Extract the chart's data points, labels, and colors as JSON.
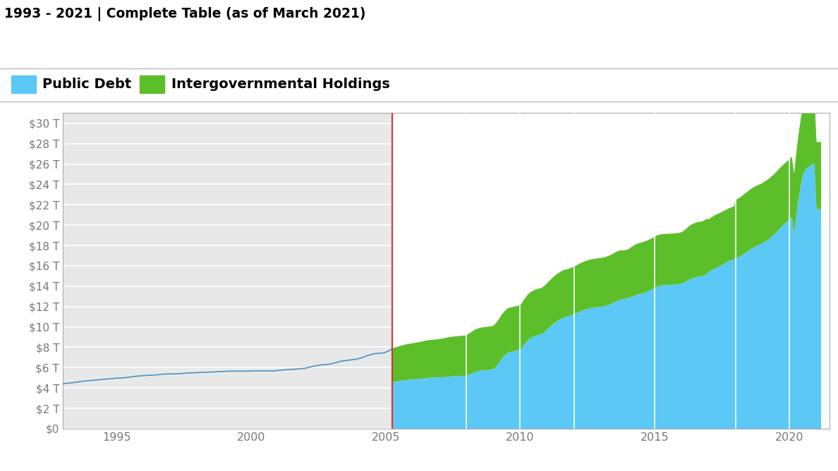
{
  "title": "1993 - 2021 | Complete Table (as of March 2021)",
  "public_debt_color": "#5BC8F5",
  "intergovernmental_color": "#5CBF2A",
  "line_color": "#4A90C4",
  "bg_color_left": "#E8E8E8",
  "bg_color_right": "#FFFFFF",
  "grid_color": "#FFFFFF",
  "ylim": [
    0,
    31
  ],
  "yticks": [
    0,
    2,
    4,
    6,
    8,
    10,
    12,
    14,
    16,
    18,
    20,
    22,
    24,
    26,
    28,
    30
  ],
  "ytick_labels": [
    "$0",
    "$2 T",
    "$4 T",
    "$6 T",
    "$8 T",
    "$10 T",
    "$12 T",
    "$14 T",
    "$16 T",
    "$18 T",
    "$20 T",
    "$22 T",
    "$24 T",
    "$26 T",
    "$28 T",
    "$30 T"
  ],
  "xticks": [
    1995,
    2000,
    2005,
    2010,
    2015,
    2020
  ],
  "xlim_left": 1993.0,
  "xlim_right": 2021.5,
  "split_year": 2005.25,
  "legend_public": "Public Debt",
  "legend_intergovernmental": "Intergovernmental Holdings",
  "years_before": [
    1993.0,
    1993.08,
    1993.17,
    1993.25,
    1993.33,
    1993.42,
    1993.5,
    1993.58,
    1993.67,
    1993.75,
    1993.83,
    1993.92,
    1994.0,
    1994.08,
    1994.17,
    1994.25,
    1994.33,
    1994.42,
    1994.5,
    1994.58,
    1994.67,
    1994.75,
    1994.83,
    1994.92,
    1995.0,
    1995.08,
    1995.17,
    1995.25,
    1995.33,
    1995.42,
    1995.5,
    1995.58,
    1995.67,
    1995.75,
    1995.83,
    1995.92,
    1996.0,
    1996.08,
    1996.17,
    1996.25,
    1996.33,
    1996.42,
    1996.5,
    1996.58,
    1996.67,
    1996.75,
    1996.83,
    1996.92,
    1997.0,
    1997.08,
    1997.17,
    1997.25,
    1997.33,
    1997.42,
    1997.5,
    1997.58,
    1997.67,
    1997.75,
    1997.83,
    1997.92,
    1998.0,
    1998.08,
    1998.17,
    1998.25,
    1998.33,
    1998.42,
    1998.5,
    1998.58,
    1998.67,
    1998.75,
    1998.83,
    1998.92,
    1999.0,
    1999.08,
    1999.17,
    1999.25,
    1999.33,
    1999.42,
    1999.5,
    1999.58,
    1999.67,
    1999.75,
    1999.83,
    1999.92,
    2000.0,
    2000.08,
    2000.17,
    2000.25,
    2000.33,
    2000.42,
    2000.5,
    2000.58,
    2000.67,
    2000.75,
    2000.83,
    2000.92,
    2001.0,
    2001.08,
    2001.17,
    2001.25,
    2001.33,
    2001.42,
    2001.5,
    2001.58,
    2001.67,
    2001.75,
    2001.83,
    2001.92,
    2002.0,
    2002.08,
    2002.17,
    2002.25,
    2002.33,
    2002.42,
    2002.5,
    2002.58,
    2002.67,
    2002.75,
    2002.83,
    2002.92,
    2003.0,
    2003.08,
    2003.17,
    2003.25,
    2003.33,
    2003.42,
    2003.5,
    2003.58,
    2003.67,
    2003.75,
    2003.83,
    2003.92,
    2004.0,
    2004.08,
    2004.17,
    2004.25,
    2004.33,
    2004.42,
    2004.5,
    2004.58,
    2004.67,
    2004.75,
    2004.83,
    2004.92,
    2005.0,
    2005.08,
    2005.17,
    2005.25
  ],
  "total_before": [
    4.41,
    4.43,
    4.45,
    4.47,
    4.5,
    4.53,
    4.56,
    4.59,
    4.62,
    4.65,
    4.68,
    4.7,
    4.72,
    4.74,
    4.76,
    4.78,
    4.8,
    4.82,
    4.84,
    4.86,
    4.88,
    4.9,
    4.92,
    4.94,
    4.96,
    4.97,
    4.98,
    4.99,
    5.01,
    5.04,
    5.07,
    5.1,
    5.13,
    5.15,
    5.17,
    5.19,
    5.21,
    5.22,
    5.23,
    5.24,
    5.25,
    5.27,
    5.29,
    5.31,
    5.33,
    5.35,
    5.36,
    5.37,
    5.38,
    5.38,
    5.38,
    5.39,
    5.4,
    5.42,
    5.44,
    5.45,
    5.46,
    5.47,
    5.48,
    5.49,
    5.5,
    5.51,
    5.52,
    5.53,
    5.54,
    5.55,
    5.56,
    5.57,
    5.58,
    5.59,
    5.6,
    5.61,
    5.62,
    5.63,
    5.64,
    5.65,
    5.65,
    5.65,
    5.65,
    5.65,
    5.65,
    5.65,
    5.65,
    5.65,
    5.67,
    5.67,
    5.67,
    5.67,
    5.67,
    5.67,
    5.67,
    5.67,
    5.67,
    5.67,
    5.67,
    5.67,
    5.72,
    5.73,
    5.76,
    5.78,
    5.79,
    5.8,
    5.81,
    5.82,
    5.84,
    5.86,
    5.88,
    5.9,
    5.93,
    5.98,
    6.03,
    6.09,
    6.14,
    6.18,
    6.22,
    6.25,
    6.27,
    6.29,
    6.31,
    6.33,
    6.38,
    6.44,
    6.51,
    6.57,
    6.62,
    6.65,
    6.68,
    6.71,
    6.74,
    6.77,
    6.8,
    6.83,
    6.88,
    6.94,
    7.02,
    7.09,
    7.18,
    7.24,
    7.3,
    7.36,
    7.38,
    7.4,
    7.42,
    7.44,
    7.5,
    7.59,
    7.72,
    7.84
  ],
  "years_after": [
    2005.25,
    2005.33,
    2005.42,
    2005.5,
    2005.58,
    2005.67,
    2005.75,
    2005.83,
    2005.92,
    2006.0,
    2006.08,
    2006.17,
    2006.25,
    2006.33,
    2006.42,
    2006.5,
    2006.58,
    2006.67,
    2006.75,
    2006.83,
    2006.92,
    2007.0,
    2007.08,
    2007.17,
    2007.25,
    2007.33,
    2007.42,
    2007.5,
    2007.58,
    2007.67,
    2007.75,
    2007.83,
    2007.92,
    2008.0,
    2008.08,
    2008.17,
    2008.25,
    2008.33,
    2008.42,
    2008.5,
    2008.58,
    2008.67,
    2008.75,
    2008.83,
    2008.92,
    2009.0,
    2009.08,
    2009.17,
    2009.25,
    2009.33,
    2009.42,
    2009.5,
    2009.58,
    2009.67,
    2009.75,
    2009.83,
    2009.92,
    2010.0,
    2010.08,
    2010.17,
    2010.25,
    2010.33,
    2010.42,
    2010.5,
    2010.58,
    2010.67,
    2010.75,
    2010.83,
    2010.92,
    2011.0,
    2011.08,
    2011.17,
    2011.25,
    2011.33,
    2011.42,
    2011.5,
    2011.58,
    2011.67,
    2011.75,
    2011.83,
    2011.92,
    2012.0,
    2012.08,
    2012.17,
    2012.25,
    2012.33,
    2012.42,
    2012.5,
    2012.58,
    2012.67,
    2012.75,
    2012.83,
    2012.92,
    2013.0,
    2013.08,
    2013.17,
    2013.25,
    2013.33,
    2013.42,
    2013.5,
    2013.58,
    2013.67,
    2013.75,
    2013.83,
    2013.92,
    2014.0,
    2014.08,
    2014.17,
    2014.25,
    2014.33,
    2014.42,
    2014.5,
    2014.58,
    2014.67,
    2014.75,
    2014.83,
    2014.92,
    2015.0,
    2015.08,
    2015.17,
    2015.25,
    2015.33,
    2015.42,
    2015.5,
    2015.58,
    2015.67,
    2015.75,
    2015.83,
    2015.92,
    2016.0,
    2016.08,
    2016.17,
    2016.25,
    2016.33,
    2016.42,
    2016.5,
    2016.58,
    2016.67,
    2016.75,
    2016.83,
    2016.92,
    2017.0,
    2017.08,
    2017.17,
    2017.25,
    2017.33,
    2017.42,
    2017.5,
    2017.58,
    2017.67,
    2017.75,
    2017.83,
    2017.92,
    2018.0,
    2018.08,
    2018.17,
    2018.25,
    2018.33,
    2018.42,
    2018.5,
    2018.58,
    2018.67,
    2018.75,
    2018.83,
    2018.92,
    2019.0,
    2019.08,
    2019.17,
    2019.25,
    2019.33,
    2019.42,
    2019.5,
    2019.58,
    2019.67,
    2019.75,
    2019.83,
    2019.92,
    2020.0,
    2020.08,
    2020.17,
    2020.25,
    2020.33,
    2020.42,
    2020.5,
    2020.58,
    2020.67,
    2020.75,
    2020.83,
    2020.92,
    2021.0,
    2021.17
  ],
  "public_after": [
    4.59,
    4.64,
    4.68,
    4.72,
    4.76,
    4.79,
    4.81,
    4.83,
    4.85,
    4.87,
    4.89,
    4.91,
    4.93,
    4.95,
    4.98,
    5.0,
    5.02,
    5.04,
    5.05,
    5.06,
    5.07,
    5.08,
    5.09,
    5.1,
    5.12,
    5.14,
    5.16,
    5.17,
    5.18,
    5.19,
    5.2,
    5.21,
    5.22,
    5.24,
    5.32,
    5.42,
    5.52,
    5.62,
    5.69,
    5.74,
    5.77,
    5.79,
    5.8,
    5.82,
    5.84,
    5.9,
    6.1,
    6.4,
    6.7,
    7.0,
    7.25,
    7.45,
    7.55,
    7.6,
    7.65,
    7.7,
    7.75,
    7.8,
    8.1,
    8.4,
    8.65,
    8.85,
    9.0,
    9.1,
    9.18,
    9.24,
    9.3,
    9.4,
    9.6,
    9.8,
    10.0,
    10.2,
    10.38,
    10.55,
    10.7,
    10.82,
    10.92,
    11.0,
    11.05,
    11.12,
    11.2,
    11.3,
    11.38,
    11.48,
    11.58,
    11.66,
    11.74,
    11.8,
    11.85,
    11.9,
    11.94,
    11.97,
    11.99,
    12.01,
    12.05,
    12.1,
    12.17,
    12.24,
    12.35,
    12.47,
    12.57,
    12.65,
    12.72,
    12.77,
    12.82,
    12.87,
    12.93,
    13.0,
    13.1,
    13.18,
    13.25,
    13.3,
    13.38,
    13.45,
    13.55,
    13.65,
    13.75,
    13.85,
    14.0,
    14.05,
    14.1,
    14.12,
    14.14,
    14.15,
    14.16,
    14.17,
    14.2,
    14.22,
    14.25,
    14.3,
    14.4,
    14.52,
    14.65,
    14.75,
    14.83,
    14.9,
    14.95,
    14.98,
    15.0,
    15.1,
    15.25,
    15.4,
    15.55,
    15.68,
    15.8,
    15.9,
    16.0,
    16.12,
    16.25,
    16.38,
    16.5,
    16.58,
    16.66,
    16.74,
    16.85,
    16.97,
    17.1,
    17.25,
    17.4,
    17.55,
    17.7,
    17.83,
    17.95,
    18.05,
    18.15,
    18.25,
    18.4,
    18.55,
    18.7,
    18.9,
    19.1,
    19.3,
    19.55,
    19.8,
    20.0,
    20.2,
    20.4,
    20.6,
    20.8,
    19.1,
    21.0,
    22.5,
    24.0,
    25.0,
    25.5,
    25.7,
    25.85,
    25.95,
    26.05,
    21.6,
    21.57
  ],
  "intergovt_after": [
    3.34,
    3.36,
    3.38,
    3.41,
    3.44,
    3.47,
    3.5,
    3.52,
    3.54,
    3.56,
    3.58,
    3.6,
    3.62,
    3.64,
    3.67,
    3.69,
    3.7,
    3.71,
    3.72,
    3.73,
    3.74,
    3.76,
    3.79,
    3.82,
    3.85,
    3.87,
    3.89,
    3.91,
    3.92,
    3.93,
    3.94,
    3.95,
    3.96,
    4.0,
    4.05,
    4.1,
    4.14,
    4.17,
    4.19,
    4.2,
    4.21,
    4.22,
    4.23,
    4.24,
    4.25,
    4.26,
    4.28,
    4.3,
    4.32,
    4.34,
    4.35,
    4.36,
    4.36,
    4.36,
    4.36,
    4.36,
    4.36,
    4.38,
    4.42,
    4.46,
    4.49,
    4.51,
    4.52,
    4.53,
    4.54,
    4.54,
    4.54,
    4.54,
    4.54,
    4.56,
    4.58,
    4.6,
    4.62,
    4.63,
    4.64,
    4.65,
    4.66,
    4.66,
    4.66,
    4.66,
    4.66,
    4.68,
    4.7,
    4.72,
    4.74,
    4.75,
    4.76,
    4.77,
    4.78,
    4.78,
    4.78,
    4.78,
    4.79,
    4.79,
    4.8,
    4.81,
    4.82,
    4.83,
    4.84,
    4.85,
    4.86,
    4.86,
    4.86,
    4.75,
    4.76,
    4.77,
    4.87,
    4.95,
    5.0,
    5.02,
    5.02,
    5.02,
    5.02,
    5.02,
    5.02,
    5.02,
    5.03,
    5.03,
    5.03,
    5.03,
    5.03,
    5.03,
    5.03,
    5.03,
    5.03,
    5.03,
    5.03,
    5.03,
    5.03,
    5.05,
    5.1,
    5.18,
    5.25,
    5.3,
    5.33,
    5.35,
    5.37,
    5.38,
    5.39,
    5.39,
    5.4,
    5.2,
    5.22,
    5.23,
    5.24,
    5.24,
    5.23,
    5.22,
    5.21,
    5.2,
    5.19,
    5.19,
    5.19,
    5.76,
    5.78,
    5.8,
    5.83,
    5.86,
    5.89,
    5.9,
    5.91,
    5.92,
    5.92,
    5.92,
    5.92,
    5.92,
    5.92,
    5.92,
    5.92,
    5.92,
    5.92,
    5.92,
    5.92,
    5.92,
    5.92,
    5.92,
    5.92,
    5.92,
    5.95,
    6.0,
    6.2,
    6.4,
    6.55,
    6.65,
    6.7,
    6.73,
    6.74,
    6.75,
    6.75,
    6.6,
    6.61
  ]
}
